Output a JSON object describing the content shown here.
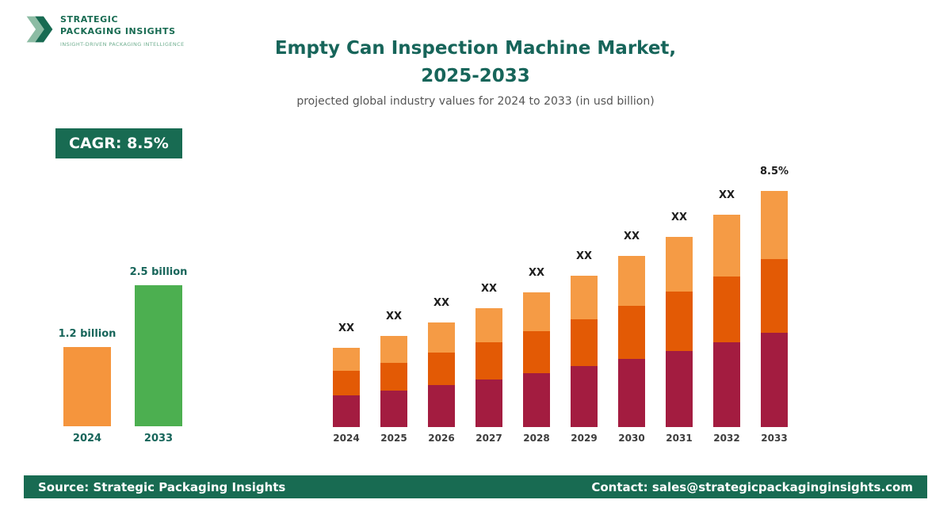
{
  "logo": {
    "name_line1": "STRATEGIC",
    "name_line2": "PACKAGING INSIGHTS",
    "tagline": "INSIGHT-DRIVEN PACKAGING INTELLIGENCE"
  },
  "header": {
    "title_line1": "Empty Can Inspection Machine Market,",
    "title_line2": "2025-2033",
    "subtitle": "projected global industry values for 2024 to 2033 (in usd billion)"
  },
  "cagr_badge": {
    "label": "CAGR: 8.5%"
  },
  "footer": {
    "source": "Source: Strategic Packaging Insights",
    "contact": "Contact: sales@strategicpackaginginsights.com"
  },
  "colors": {
    "brand_green": "#186B52",
    "title_teal": "#17655A",
    "bar_orange": "#F5953D",
    "bar_green": "#4CAF50",
    "seg_maroon": "#A31C40",
    "seg_dark_orange": "#E35A05",
    "seg_light_orange": "#F59B45"
  },
  "chart_data": [
    {
      "id": "highlight_bars",
      "type": "bar",
      "units": "usd billion",
      "categories": [
        "2024",
        "2033"
      ],
      "values": [
        1.2,
        2.5
      ],
      "bar_labels": [
        "1.2 billion",
        "2.5 billion"
      ],
      "bar_colors": [
        "#F5953D",
        "#4CAF50"
      ]
    },
    {
      "id": "market_projection",
      "type": "stacked-bar",
      "units": "usd billion",
      "cagr": "8.5%",
      "categories": [
        "2024",
        "2025",
        "2026",
        "2027",
        "2028",
        "2029",
        "2030",
        "2031",
        "2032",
        "2033"
      ],
      "series": [
        {
          "name": "segment-bottom",
          "color": "#A31C40",
          "values": [
            0.48,
            0.52,
            0.57,
            0.61,
            0.66,
            0.72,
            0.78,
            0.85,
            0.92,
            1.0
          ]
        },
        {
          "name": "segment-middle",
          "color": "#E35A05",
          "values": [
            0.37,
            0.4,
            0.44,
            0.48,
            0.52,
            0.56,
            0.61,
            0.66,
            0.71,
            0.78
          ]
        },
        {
          "name": "segment-top",
          "color": "#F59B45",
          "values": [
            0.35,
            0.38,
            0.41,
            0.44,
            0.48,
            0.52,
            0.57,
            0.61,
            0.67,
            0.72
          ]
        }
      ],
      "totals": [
        1.2,
        1.3,
        1.41,
        1.53,
        1.66,
        1.8,
        1.96,
        2.12,
        2.3,
        2.5
      ],
      "bar_labels": [
        "XX",
        "XX",
        "XX",
        "XX",
        "XX",
        "XX",
        "XX",
        "XX",
        "XX",
        "8.5%"
      ]
    }
  ]
}
